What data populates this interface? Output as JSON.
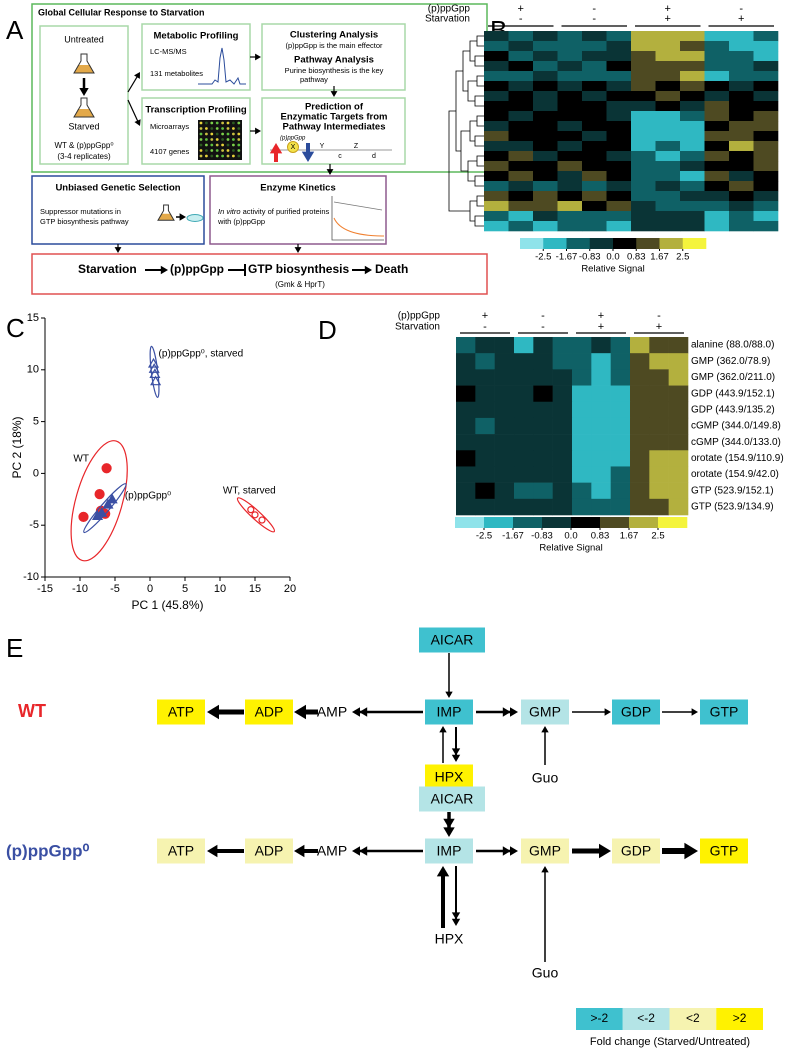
{
  "panel_a": {
    "label": "A",
    "title": "Global Cellular Response to Starvation",
    "untreated": "Untreated",
    "starved": "Starved",
    "strains": "WT & (p)ppGpp⁰",
    "replicates": "(3-4 replicates)",
    "metabolic": {
      "title": "Metabolic Profiling",
      "method": "LC-MS/MS",
      "count": "131 metabolites"
    },
    "transcription": {
      "title": "Transcription Profiling",
      "method": "Microarrays",
      "count": "4107 genes"
    },
    "clustering": {
      "title": "Clustering Analysis",
      "text": "(p)ppGpp is the main effector"
    },
    "pathway": {
      "title": "Pathway Analysis",
      "lines": [
        "Purine biosynthesis is the key",
        "pathway"
      ]
    },
    "prediction": {
      "lines": [
        "Prediction of",
        "Enzymatic Targets from",
        "Pathway Intermediates"
      ],
      "ppgpp": "(p)ppGpp",
      "letters": [
        "X",
        "Y",
        "c",
        "Z",
        "d"
      ]
    },
    "genetic": {
      "title": "Unbiased Genetic Selection",
      "lines": [
        "Suppressor mutations in",
        "GTP biosynthesis pathway"
      ]
    },
    "kinetics": {
      "title": "Enzyme Kinetics",
      "italic": "In vitro",
      "lines": [
        " activity of purified proteins",
        "with (p)ppGpp"
      ]
    },
    "conclusion": {
      "parts": [
        "Starvation",
        "(p)ppGpp",
        "GTP biosynthesis",
        "Death"
      ],
      "sub": "(Gmk & HprT)"
    }
  },
  "panel_b": {
    "label": "B",
    "header_rows": [
      {
        "name": "(p)ppGpp",
        "signs": [
          "+",
          "-",
          "+",
          "-"
        ]
      },
      {
        "name": "Starvation",
        "signs": [
          "-",
          "-",
          "+",
          "+"
        ]
      }
    ],
    "matrix": [
      [
        -0.5,
        -1.2,
        -0.8,
        -1.0,
        -0.3,
        -0.9,
        2.1,
        1.8,
        2.4,
        -1.7,
        -1.9,
        -1.4
      ],
      [
        -1.3,
        -0.6,
        -1.1,
        -0.9,
        -1.4,
        -0.7,
        1.9,
        2.3,
        1.6,
        -1.5,
        -2.2,
        -1.8
      ],
      [
        0.4,
        -0.9,
        -0.2,
        -1.1,
        -0.5,
        -0.8,
        1.4,
        2.0,
        1.7,
        -1.2,
        -1.6,
        -2.0
      ],
      [
        -0.8,
        0.6,
        -1.4,
        -0.3,
        -1.0,
        0.2,
        1.2,
        1.5,
        0.9,
        -0.9,
        -1.1,
        -0.6
      ],
      [
        -1.5,
        -1.0,
        -0.4,
        -1.6,
        -0.9,
        -1.2,
        0.9,
        1.3,
        1.8,
        -1.8,
        -1.3,
        -1.0
      ],
      [
        0.2,
        -0.3,
        0.5,
        -0.1,
        0.3,
        -0.4,
        1.1,
        0.8,
        1.4,
        0.4,
        -0.2,
        0.1
      ],
      [
        -0.4,
        0.1,
        -0.6,
        0.2,
        -0.5,
        0.0,
        0.7,
        1.2,
        0.6,
        -0.3,
        0.5,
        -0.1
      ],
      [
        0.6,
        0.3,
        -0.2,
        0.4,
        0.1,
        -0.3,
        -0.4,
        0.2,
        -0.6,
        0.9,
        0.3,
        0.7
      ],
      [
        0.3,
        -0.5,
        0.8,
        0.0,
        0.6,
        -0.2,
        -1.9,
        -2.1,
        -1.6,
        1.2,
        0.7,
        1.5
      ],
      [
        -0.6,
        0.4,
        0.1,
        -0.7,
        0.2,
        0.5,
        -2.3,
        -1.8,
        -2.0,
        0.8,
        1.4,
        1.1
      ],
      [
        0.9,
        0.2,
        0.5,
        0.3,
        -0.1,
        0.7,
        -1.7,
        -2.4,
        -2.2,
        1.6,
        1.0,
        0.6
      ],
      [
        -0.2,
        -0.8,
        0.3,
        -0.4,
        0.5,
        0.1,
        -2.0,
        -1.5,
        -2.5,
        0.5,
        1.7,
        1.3
      ],
      [
        0.5,
        0.9,
        -0.3,
        0.7,
        0.2,
        -0.5,
        -1.4,
        -1.9,
        -1.3,
        1.3,
        0.4,
        0.9
      ],
      [
        1.2,
        0.4,
        0.8,
        1.0,
        0.6,
        0.3,
        -0.9,
        -1.3,
        -0.7,
        0.2,
        0.8,
        1.6
      ],
      [
        0.1,
        1.1,
        0.4,
        -0.2,
        0.9,
        0.6,
        -1.6,
        -1.0,
        -1.8,
        1.0,
        -0.3,
        0.5
      ],
      [
        -0.9,
        -0.4,
        -1.2,
        -0.6,
        -1.1,
        -0.8,
        -1.2,
        -0.6,
        -1.5,
        0.3,
        0.9,
        0.2
      ],
      [
        1.6,
        0.8,
        1.3,
        0.5,
        1.0,
        0.7,
        -1.0,
        -1.6,
        -0.8,
        -0.4,
        0.1,
        -0.7
      ],
      [
        2.2,
        1.5,
        0.9,
        1.8,
        0.4,
        1.2,
        -0.6,
        -1.1,
        -0.9,
        -1.0,
        -0.5,
        -1.3
      ],
      [
        -1.1,
        -1.8,
        -0.7,
        -1.4,
        -1.6,
        -1.0,
        -0.3,
        -0.8,
        -0.2,
        -1.7,
        -1.2,
        -1.9
      ],
      [
        -1.9,
        -1.3,
        -2.1,
        -1.0,
        -1.5,
        -2.2,
        -0.5,
        -0.1,
        -0.7,
        -2.1,
        -1.6,
        -1.4
      ]
    ],
    "colorbar": {
      "colors": [
        "#8fe3ea",
        "#2fb8c2",
        "#0f6166",
        "#0a3436",
        "#000000",
        "#4e4a22",
        "#b3b03e",
        "#f4f43c"
      ],
      "ticks": [
        -2.5,
        -1.67,
        -0.83,
        {
          "value": 0,
          "label": "0.0"
        },
        0.83,
        1.67,
        2.5
      ],
      "label": "Relative Signal"
    }
  },
  "panel_c": {
    "type": "scatter",
    "label": "C",
    "xlabel": "PC 1 (45.8%)",
    "ylabel": "PC 2 (18%)",
    "xlim": [
      -15,
      20
    ],
    "ylim": [
      -10,
      15
    ],
    "xticks": [
      -15,
      -10,
      -5,
      0,
      5,
      10,
      15,
      20
    ],
    "yticks": [
      -10,
      -5,
      0,
      5,
      10,
      15
    ],
    "series": [
      {
        "name": "WT",
        "color": "#e8262a",
        "marker": "circle",
        "filled": true,
        "x": [
          -9.5,
          -7.2,
          -6.2,
          -7.0,
          -6.4
        ],
        "values": [
          -4.2,
          -2.0,
          0.5,
          -3.6,
          -3.9
        ]
      },
      {
        "name": "(p)ppGpp⁰",
        "color": "#3a4fa3",
        "marker": "triangle",
        "filled": true,
        "x": [
          -6.0,
          -5.4,
          -6.9,
          -7.5
        ],
        "values": [
          -3.0,
          -2.5,
          -3.8,
          -4.1
        ]
      },
      {
        "name": "(p)ppGpp⁰, starved",
        "color": "#3a4fa3",
        "marker": "triangle",
        "filled": false,
        "x": [
          0.5,
          0.7,
          0.8,
          0.6
        ],
        "values": [
          10.6,
          9.6,
          8.9,
          10.1
        ]
      },
      {
        "name": "WT, starved",
        "color": "#e8262a",
        "marker": "circle",
        "filled": false,
        "x": [
          14.4,
          15.0,
          16.0
        ],
        "values": [
          -3.5,
          -4.0,
          -4.5
        ]
      }
    ]
  },
  "panel_d": {
    "label": "D",
    "header_rows": [
      {
        "name": "(p)ppGpp",
        "signs": [
          "+",
          "-",
          "+",
          "-"
        ]
      },
      {
        "name": "Starvation",
        "signs": [
          "-",
          "-",
          "+",
          "+"
        ]
      }
    ],
    "row_labels": [
      "alanine (88.0/88.0)",
      "GMP (362.0/78.9)",
      "GMP (362.0/211.0)",
      "GDP (443.9/152.1)",
      "GDP (443.9/135.2)",
      "cGMP (344.0/149.8)",
      "cGMP (344.0/133.0)",
      "orotate (154.9/110.9)",
      "orotate (154.9/42.0)",
      "GTP (523.9/152.1)",
      "GTP (523.9/134.9)"
    ],
    "matrix": [
      [
        -1.0,
        -0.3,
        -0.6,
        -1.8,
        -0.5,
        -0.9,
        -1.1,
        -0.7,
        -1.2,
        1.8,
        1.4,
        1.6
      ],
      [
        -0.4,
        -1.6,
        -0.5,
        -0.2,
        -0.8,
        -1.2,
        -1.3,
        -1.9,
        -1.1,
        1.2,
        1.9,
        2.0
      ],
      [
        -0.2,
        -0.5,
        -0.3,
        -0.1,
        -0.4,
        -0.2,
        -1.4,
        -2.0,
        -1.2,
        1.3,
        1.6,
        1.8
      ],
      [
        0.6,
        -0.1,
        -0.2,
        -0.5,
        0.3,
        -0.3,
        -2.0,
        -2.1,
        -2.0,
        0.9,
        1.4,
        1.5
      ],
      [
        -0.6,
        -0.2,
        -0.3,
        -0.4,
        -0.1,
        -0.5,
        -2.1,
        -2.0,
        -2.0,
        1.0,
        1.2,
        1.6
      ],
      [
        -0.3,
        -0.9,
        -0.2,
        -0.5,
        -0.4,
        -0.1,
        -2.0,
        -2.1,
        -1.9,
        1.1,
        1.3,
        1.2
      ],
      [
        -0.5,
        -0.8,
        -0.1,
        -0.6,
        -0.3,
        -0.2,
        -1.9,
        -2.0,
        -2.0,
        1.5,
        1.2,
        1.4
      ],
      [
        0.2,
        -0.6,
        -0.3,
        -0.4,
        -0.2,
        -0.5,
        -1.8,
        -2.0,
        -1.7,
        1.3,
        1.7,
        2.4
      ],
      [
        -0.1,
        -0.4,
        -0.7,
        -0.2,
        -0.3,
        -0.6,
        -1.7,
        -1.9,
        -1.6,
        1.4,
        1.9,
        2.3
      ],
      [
        -0.7,
        0.8,
        -0.5,
        -0.9,
        -1.2,
        -0.6,
        -1.5,
        -1.7,
        -1.4,
        1.6,
        2.1,
        1.8
      ],
      [
        -0.8,
        -0.3,
        -0.6,
        -0.5,
        -0.4,
        -0.7,
        -1.3,
        -1.4,
        -1.5,
        1.5,
        1.6,
        2.0
      ]
    ],
    "colorbar": {
      "colors": [
        "#8fe3ea",
        "#2fb8c2",
        "#0f6166",
        "#0a3436",
        "#000000",
        "#4e4a22",
        "#b3b03e",
        "#f4f43c"
      ],
      "ticks": [
        -2.5,
        -1.67,
        -0.83,
        {
          "value": 0,
          "label": "0.0"
        },
        0.83,
        1.67,
        2.5
      ],
      "label": "Relative Signal"
    }
  },
  "panel_e": {
    "label": "E",
    "strains": [
      {
        "label": "WT",
        "color": "#e8262a",
        "nodes": [
          {
            "name": "ATP",
            "fold": ">2"
          },
          {
            "name": "ADP",
            "fold": ">2"
          },
          {
            "name": "AMP"
          },
          {
            "name": "IMP",
            "fold": ">-2"
          },
          {
            "name": "GMP",
            "fold": "<-2"
          },
          {
            "name": "GDP",
            "fold": ">-2"
          },
          {
            "name": "GTP",
            "fold": ">-2"
          },
          {
            "name": "AICAR",
            "fold": ">-2"
          },
          {
            "name": "HPX",
            "fold": ">2"
          },
          {
            "name": "Guo"
          }
        ]
      },
      {
        "label": "(p)ppGpp⁰",
        "color": "#3a4fa3",
        "nodes": [
          {
            "name": "ATP",
            "fold": "<2"
          },
          {
            "name": "ADP",
            "fold": "<2"
          },
          {
            "name": "AMP"
          },
          {
            "name": "IMP",
            "fold": "<-2"
          },
          {
            "name": "GMP",
            "fold": "<2"
          },
          {
            "name": "GDP",
            "fold": "<2"
          },
          {
            "name": "GTP",
            "fold": ">2"
          },
          {
            "name": "AICAR",
            "fold": "<-2"
          },
          {
            "name": "HPX"
          },
          {
            "name": "Guo"
          }
        ]
      }
    ],
    "legend": {
      "items": [
        {
          "label": ">-2",
          "color": "#3fc1cf"
        },
        {
          "label": "<-2",
          "color": "#b4e4e6"
        },
        {
          "label": "<2",
          "color": "#f6f3b0"
        },
        {
          "label": ">2",
          "color": "#fff200"
        }
      ],
      "title": "Fold change (Starved/Untreated)"
    }
  }
}
